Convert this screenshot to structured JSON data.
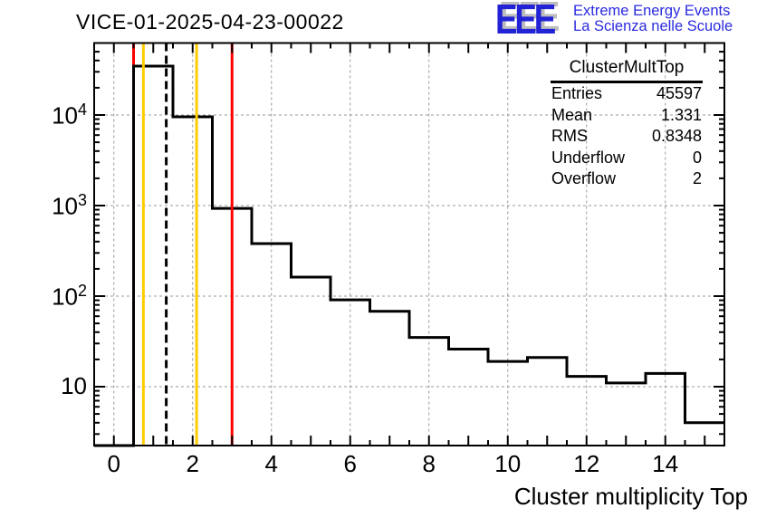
{
  "page": {
    "title": "VICE-01-2025-04-23-00022"
  },
  "logo": {
    "acronym": "EEE",
    "tagline_en": "Extreme Energy Events",
    "tagline_it": "La Scienza nelle Scuole",
    "color": "#2222d6"
  },
  "stats_box": {
    "header": "ClusterMultTop",
    "rows": [
      {
        "label": "Entries",
        "value": "45597"
      },
      {
        "label": "Mean",
        "value": "1.331"
      },
      {
        "label": "RMS",
        "value": "0.8348"
      },
      {
        "label": "Underflow",
        "value": "0"
      },
      {
        "label": "Overflow",
        "value": "2"
      }
    ]
  },
  "chart_data": {
    "type": "bar",
    "render_style": "step-outline-histogram",
    "title": "VICE-01-2025-04-23-00022",
    "xlabel": "Cluster multiplicity Top",
    "ylabel": "",
    "categories": [
      0,
      1,
      2,
      3,
      4,
      5,
      6,
      7,
      8,
      9,
      10,
      11,
      12,
      13,
      14,
      15
    ],
    "values": [
      0,
      34700,
      9550,
      930,
      380,
      162,
      91,
      68,
      35,
      26,
      19,
      21,
      13,
      11,
      14,
      4
    ],
    "bin_width": 1,
    "x_range": [
      -0.5,
      15.5
    ],
    "y_scale": "log",
    "y_range": [
      2.24,
      62000
    ],
    "line_color": "#000000",
    "x_tick_labels": [
      "0",
      "2",
      "4",
      "6",
      "8",
      "10",
      "12",
      "14"
    ],
    "x_tick_label_values": [
      0,
      2,
      4,
      6,
      8,
      10,
      12,
      14
    ],
    "y_tick_labels": [
      {
        "value": 10,
        "base": "10",
        "exp": ""
      },
      {
        "value": 100,
        "base": "10",
        "exp": "2"
      },
      {
        "value": 1000,
        "base": "10",
        "exp": "3"
      },
      {
        "value": 10000,
        "base": "10",
        "exp": "4"
      }
    ],
    "grid": {
      "x_values": [
        0,
        2,
        4,
        6,
        8,
        10,
        12,
        14
      ],
      "y_values": [
        10,
        100,
        1000,
        10000
      ],
      "style": "dashed",
      "color": "#9a9a9a"
    },
    "marker_lines": [
      {
        "x": 0.5,
        "color": "#ff0000",
        "style": "solid",
        "layer": "behind"
      },
      {
        "x": 0.75,
        "color": "#ffcc00",
        "style": "solid",
        "layer": "front"
      },
      {
        "x": 1.33,
        "color": "#000000",
        "style": "dashed",
        "layer": "front"
      },
      {
        "x": 2.1,
        "color": "#ffcc00",
        "style": "solid",
        "layer": "front"
      },
      {
        "x": 3.0,
        "color": "#ff0000",
        "style": "solid",
        "layer": "front"
      }
    ]
  }
}
